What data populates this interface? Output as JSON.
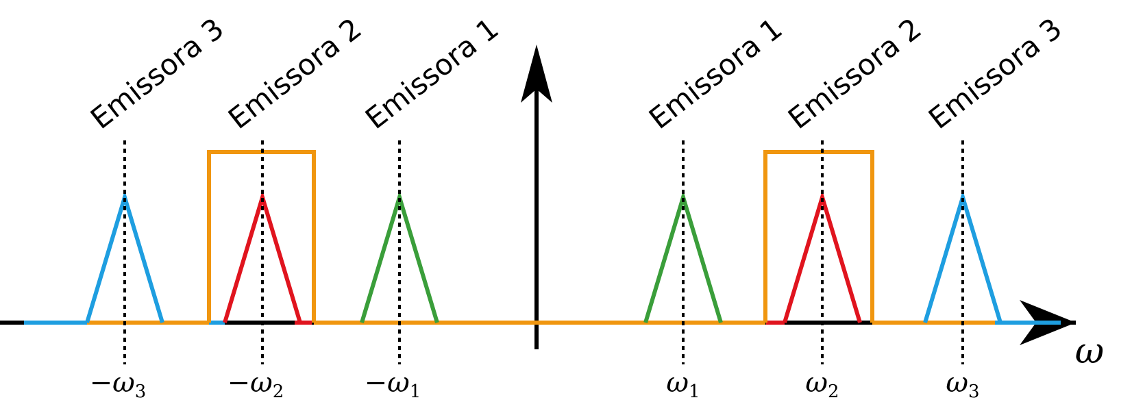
{
  "diagram": {
    "axis_label": "ω",
    "colors": {
      "emissora1": "#3a9e3a",
      "emissora2": "#e0141e",
      "emissora3": "#1e9ee0",
      "filter": "#f0960f",
      "axis": "#000000"
    },
    "signals": [
      {
        "label": "Emissora 3",
        "tick_sign": "−",
        "tick_base": "ω",
        "tick_sub": "3",
        "color_key": "emissora3"
      },
      {
        "label": "Emissora 2",
        "tick_sign": "−",
        "tick_base": "ω",
        "tick_sub": "2",
        "color_key": "emissora2"
      },
      {
        "label": "Emissora 1",
        "tick_sign": "−",
        "tick_base": "ω",
        "tick_sub": "1",
        "color_key": "emissora1"
      },
      {
        "label": "Emissora 1",
        "tick_sign": "",
        "tick_base": "ω",
        "tick_sub": "1",
        "color_key": "emissora1"
      },
      {
        "label": "Emissora 2",
        "tick_sign": "",
        "tick_base": "ω",
        "tick_sub": "2",
        "color_key": "emissora2"
      },
      {
        "label": "Emissora 3",
        "tick_sign": "",
        "tick_base": "ω",
        "tick_sub": "3",
        "color_key": "emissora3"
      }
    ],
    "filter_windows": [
      "−ω2",
      "ω2"
    ]
  }
}
